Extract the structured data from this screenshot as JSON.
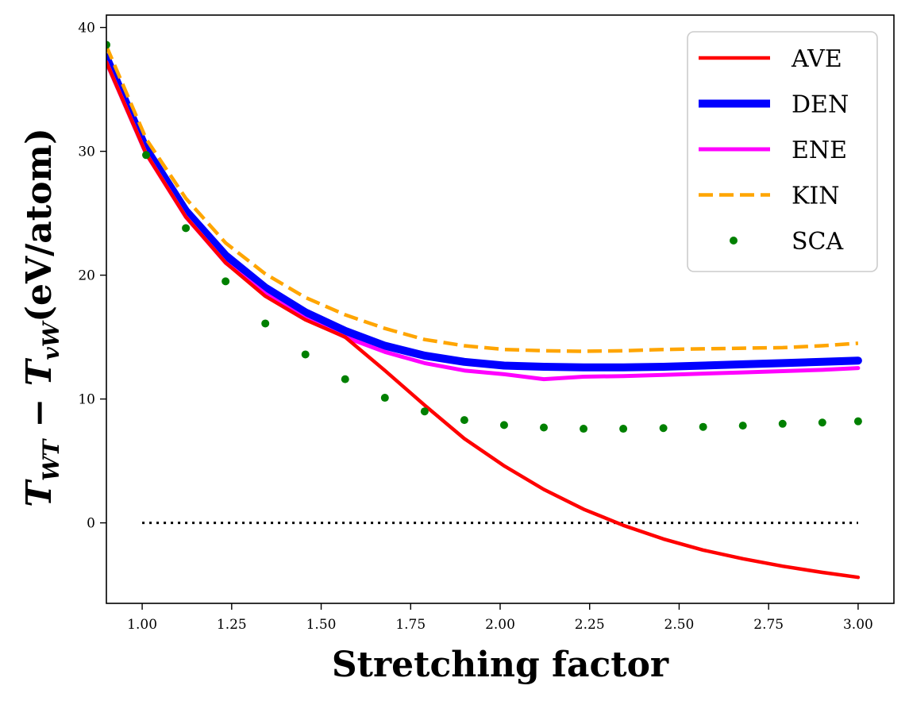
{
  "chart_data": {
    "type": "line",
    "title": "",
    "xlabel": "Stretching factor",
    "ylabel": {
      "T": "T",
      "sub1": "WT",
      "minus": " − ",
      "T2": "T",
      "sub2": "vW",
      "unit": "(eV/atom)"
    },
    "xlim": [
      0.9,
      3.1
    ],
    "ylim": [
      -6.5,
      41
    ],
    "xticks": [
      "1.00",
      "1.25",
      "1.50",
      "1.75",
      "2.00",
      "2.25",
      "2.50",
      "2.75",
      "3.00"
    ],
    "xtick_values": [
      1.0,
      1.25,
      1.5,
      1.75,
      2.0,
      2.25,
      2.5,
      2.75,
      3.0
    ],
    "yticks": [
      "0",
      "10",
      "20",
      "30",
      "40"
    ],
    "ytick_values": [
      0,
      10,
      20,
      30,
      40
    ],
    "grid": false,
    "legend_position": "top-right",
    "x": [
      0.9,
      1.011,
      1.122,
      1.233,
      1.344,
      1.456,
      1.567,
      1.678,
      1.789,
      1.9,
      2.011,
      2.122,
      2.233,
      2.344,
      2.456,
      2.567,
      2.678,
      2.789,
      2.9,
      3.0
    ],
    "series": [
      {
        "name": "AVE",
        "color": "#ff0000",
        "style": "solid",
        "width": 4.5,
        "values": [
          37.2,
          29.8,
          24.7,
          21.0,
          18.3,
          16.4,
          15.0,
          12.3,
          9.5,
          6.8,
          4.6,
          2.7,
          1.1,
          -0.2,
          -1.3,
          -2.2,
          -2.9,
          -3.5,
          -4.0,
          -4.4
        ]
      },
      {
        "name": "DEN",
        "color": "#0000ff",
        "style": "solid",
        "width": 10,
        "values": [
          37.6,
          30.2,
          25.2,
          21.6,
          19.0,
          17.0,
          15.5,
          14.3,
          13.5,
          13.0,
          12.7,
          12.6,
          12.55,
          12.55,
          12.6,
          12.7,
          12.8,
          12.9,
          13.0,
          13.1
        ]
      },
      {
        "name": "ENE",
        "color": "#ff00ff",
        "style": "solid",
        "width": 5,
        "values": [
          37.2,
          29.8,
          24.7,
          21.0,
          18.5,
          16.5,
          15.0,
          13.8,
          12.9,
          12.3,
          12.0,
          11.6,
          11.8,
          11.85,
          11.95,
          12.05,
          12.15,
          12.25,
          12.35,
          12.5
        ]
      },
      {
        "name": "KIN",
        "color": "#ffa500",
        "style": "dashed",
        "width": 4.5,
        "values": [
          38.5,
          31.0,
          26.2,
          22.6,
          20.1,
          18.2,
          16.8,
          15.7,
          14.8,
          14.3,
          14.0,
          13.9,
          13.85,
          13.9,
          14.0,
          14.05,
          14.1,
          14.15,
          14.3,
          14.5
        ]
      },
      {
        "name": "SCA",
        "color": "#008000",
        "style": "dots",
        "width": 0,
        "values": [
          38.6,
          29.7,
          23.8,
          19.5,
          16.1,
          13.6,
          11.6,
          10.1,
          9.0,
          8.3,
          7.9,
          7.7,
          7.6,
          7.6,
          7.65,
          7.75,
          7.85,
          8.0,
          8.1,
          8.2
        ]
      }
    ],
    "reference_line": {
      "y": 0,
      "x_start": 1.0,
      "x_end": 3.0,
      "color": "#000000",
      "style": "dotted"
    }
  }
}
